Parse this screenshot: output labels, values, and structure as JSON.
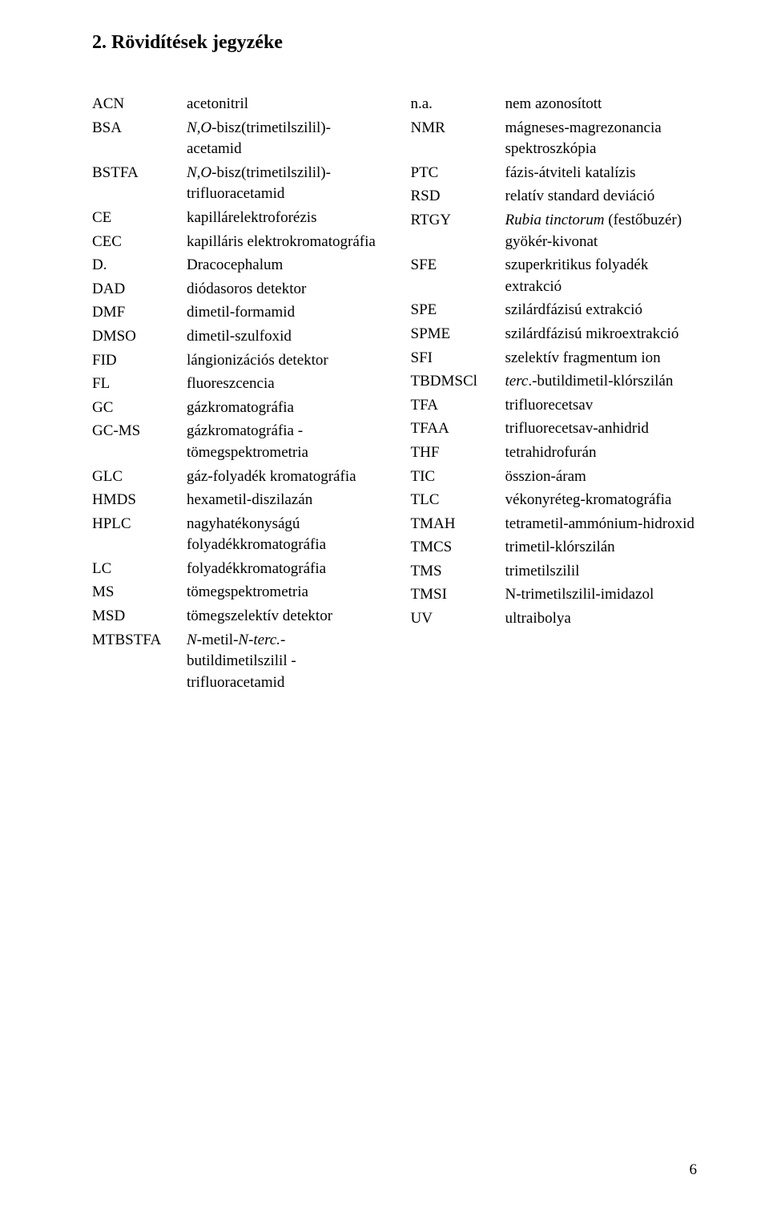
{
  "title": "2. Rövidítések jegyzéke",
  "pageNumber": "6",
  "left": [
    {
      "abbr": "ACN",
      "def": "acetonitril"
    },
    {
      "abbr": "BSA",
      "def": "<span class='italic'>N,O</span>-bisz(trimetilszilil)-acetamid"
    },
    {
      "abbr": "BSTFA",
      "def": "<span class='italic'>N,O</span>-bisz(trimetilszilil)-trifluoracetamid"
    },
    {
      "abbr": "CE",
      "def": "kapillárelektroforézis"
    },
    {
      "abbr": "CEC",
      "def": "kapilláris elektrokromatográfia"
    },
    {
      "abbr": "D.",
      "def": "Dracocephalum"
    },
    {
      "abbr": "DAD",
      "def": "diódasoros detektor"
    },
    {
      "abbr": "DMF",
      "def": "dimetil-formamid"
    },
    {
      "abbr": "DMSO",
      "def": "dimetil-szulfoxid"
    },
    {
      "abbr": "FID",
      "def": "lángionizációs detektor"
    },
    {
      "abbr": "FL",
      "def": "fluoreszcencia"
    },
    {
      "abbr": "GC",
      "def": "gázkromatográfia"
    },
    {
      "abbr": "GC-MS",
      "def": "gázkromatográfia - tömegspektrometria"
    },
    {
      "abbr": "GLC",
      "def": "gáz-folyadék kromatográfia"
    },
    {
      "abbr": "HMDS",
      "def": "hexametil-diszilazán"
    },
    {
      "abbr": "HPLC",
      "def": "nagyhatékonyságú folyadékkromatográfia"
    },
    {
      "abbr": "LC",
      "def": "folyadékkromatográfia"
    },
    {
      "abbr": "MS",
      "def": "tömegspektrometria"
    },
    {
      "abbr": "MSD",
      "def": "tömegszelektív detektor"
    },
    {
      "abbr": "MTBSTFA",
      "def": "<span class='italic'>N</span>-metil-<span class='italic'>N-terc.</span>-butildimetilszilil - trifluoracetamid"
    }
  ],
  "right": [
    {
      "abbr": "n.a.",
      "def": "nem azonosított"
    },
    {
      "abbr": "NMR",
      "def": "mágneses-magrezonancia spektroszkópia"
    },
    {
      "abbr": "PTC",
      "def": "fázis-átviteli katalízis"
    },
    {
      "abbr": "RSD",
      "def": "relatív standard deviáció"
    },
    {
      "abbr": "RTGY",
      "def": "<span class='italic'>Rubia tinctorum</span> (festőbuzér) gyökér-kivonat"
    },
    {
      "abbr": "SFE",
      "def": "szuperkritikus folyadék extrakció"
    },
    {
      "abbr": "SPE",
      "def": "szilárdfázisú extrakció"
    },
    {
      "abbr": "SPME",
      "def": "szilárdfázisú mikroextrakció"
    },
    {
      "abbr": "SFI",
      "def": "szelektív fragmentum ion"
    },
    {
      "abbr": "TBDMSCl",
      "def": "<span class='italic'>terc</span>.-butildimetil-klórszilán"
    },
    {
      "abbr": "TFA",
      "def": "trifluorecetsav"
    },
    {
      "abbr": "TFAA",
      "def": "trifluorecetsav-anhidrid"
    },
    {
      "abbr": "THF",
      "def": "tetrahidrofurán"
    },
    {
      "abbr": "TIC",
      "def": "összion-áram"
    },
    {
      "abbr": "TLC",
      "def": "vékonyréteg-kromatográfia"
    },
    {
      "abbr": "TMAH",
      "def": "tetrametil-ammónium-hidroxid"
    },
    {
      "abbr": "TMCS",
      "def": "trimetil-klórszilán"
    },
    {
      "abbr": "TMS",
      "def": "trimetilszilil"
    },
    {
      "abbr": "TMSI",
      "def": "N-trimetilszilil-imidazol"
    },
    {
      "abbr": "UV",
      "def": "ultraibolya"
    }
  ]
}
